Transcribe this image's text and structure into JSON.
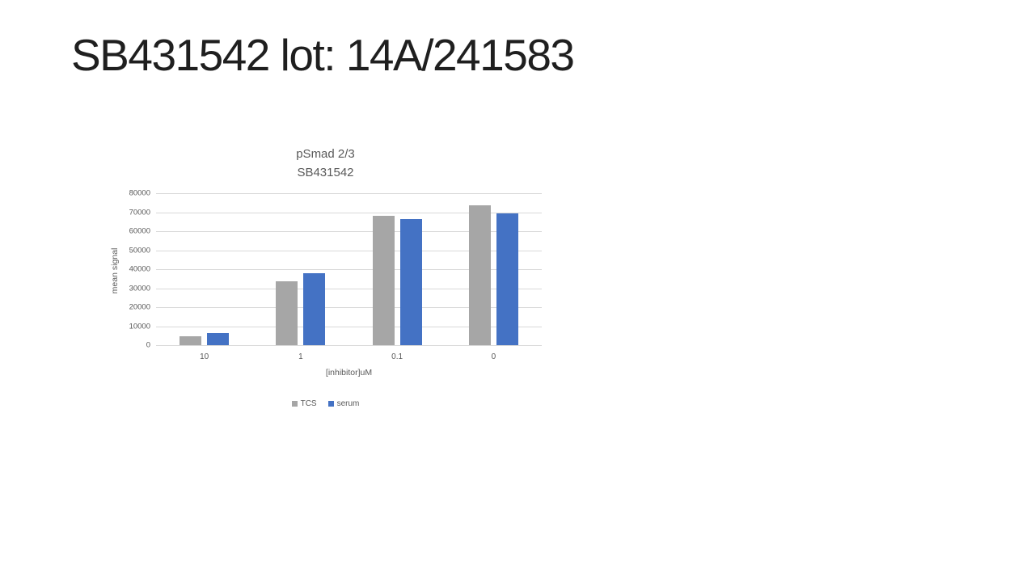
{
  "slide": {
    "title": "SB431542 lot: 14A/241583"
  },
  "chart_data": {
    "type": "bar",
    "title_lines": [
      "pSmad 2/3",
      "SB431542"
    ],
    "categories": [
      "10",
      "1",
      "0.1",
      "0"
    ],
    "series": [
      {
        "name": "TCS",
        "color": "#a6a6a6",
        "values": [
          4800,
          33500,
          68000,
          73500
        ]
      },
      {
        "name": "serum",
        "color": "#4472c4",
        "values": [
          6300,
          37700,
          66500,
          69500
        ]
      }
    ],
    "xlabel": "[inhibitor]uM",
    "ylabel": "mean signal",
    "ylim": [
      0,
      80000
    ],
    "ytick_step": 10000,
    "grid": true,
    "legend_position": "bottom"
  },
  "colors": {
    "background": "#ffffff",
    "text_title": "#1f1f1f",
    "text_muted": "#595959",
    "gridline": "#d9d9d9"
  }
}
